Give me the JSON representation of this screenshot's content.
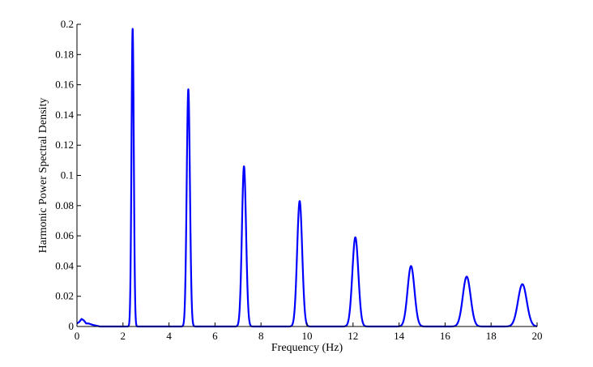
{
  "chart_data": {
    "type": "line",
    "title": "",
    "xlabel": "Frequency (Hz)",
    "ylabel": "Harmonic Power Spectral Density",
    "xlim": [
      0,
      20
    ],
    "ylim": [
      0,
      0.2
    ],
    "xticks": [
      0,
      2,
      4,
      6,
      8,
      10,
      12,
      14,
      16,
      18,
      20
    ],
    "yticks": [
      0,
      0.02,
      0.04,
      0.06,
      0.08,
      0.1,
      0.12,
      0.14,
      0.16,
      0.18,
      0.2
    ],
    "xtick_labels": [
      "0",
      "2",
      "4",
      "6",
      "8",
      "10",
      "12",
      "14",
      "16",
      "18",
      "20"
    ],
    "ytick_labels": [
      "0",
      "0.02",
      "0.04",
      "0.06",
      "0.08",
      "0.1",
      "0.12",
      "0.14",
      "0.16",
      "0.18",
      "0.2"
    ],
    "grid": false,
    "line_color": "#0000ff",
    "series": [
      {
        "peaks": [
          {
            "x": 2.42,
            "y": 0.197,
            "width": 0.05
          },
          {
            "x": 4.84,
            "y": 0.157,
            "width": 0.07
          },
          {
            "x": 7.26,
            "y": 0.106,
            "width": 0.09
          },
          {
            "x": 9.68,
            "y": 0.083,
            "width": 0.11
          },
          {
            "x": 12.1,
            "y": 0.059,
            "width": 0.13
          },
          {
            "x": 14.52,
            "y": 0.04,
            "width": 0.15
          },
          {
            "x": 16.94,
            "y": 0.033,
            "width": 0.17
          },
          {
            "x": 19.36,
            "y": 0.028,
            "width": 0.19
          }
        ],
        "low_frequency_noise": [
          {
            "x": 0.0,
            "y": 0.002
          },
          {
            "x": 0.1,
            "y": 0.003
          },
          {
            "x": 0.2,
            "y": 0.005
          },
          {
            "x": 0.3,
            "y": 0.004
          },
          {
            "x": 0.4,
            "y": 0.002
          },
          {
            "x": 0.5,
            "y": 0.002
          },
          {
            "x": 0.7,
            "y": 0.001
          },
          {
            "x": 1.0,
            "y": 0.0
          }
        ]
      }
    ]
  }
}
